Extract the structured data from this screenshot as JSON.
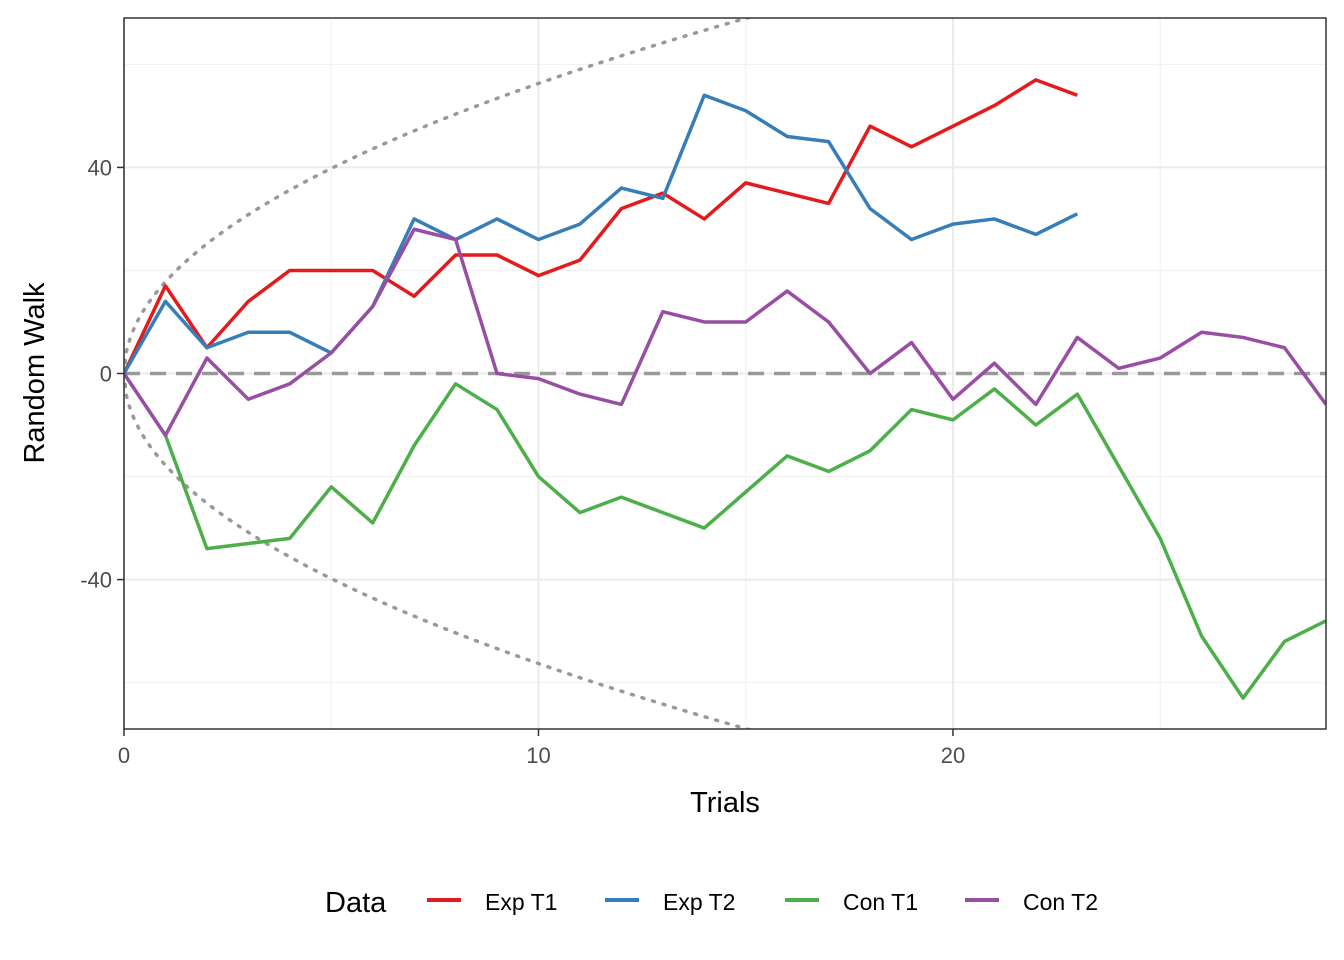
{
  "chart_data": {
    "type": "line",
    "xlabel": "Trials",
    "ylabel": "Random Walk",
    "xlim": [
      0,
      29
    ],
    "ylim": [
      -69,
      69
    ],
    "x_ticks": [
      0,
      10,
      20
    ],
    "x_tick_labels": [
      "0",
      "10",
      "20"
    ],
    "y_ticks": [
      -40,
      0,
      40
    ],
    "y_tick_labels": [
      "-40",
      "0",
      "40"
    ],
    "grid": true,
    "legend": {
      "title": "Data",
      "position": "bottom"
    },
    "series": [
      {
        "name": "Exp T1",
        "color": "#e41a1c",
        "x": [
          0,
          1,
          2,
          3,
          4,
          5,
          6,
          7,
          8,
          9,
          10,
          11,
          12,
          13,
          14,
          15,
          16,
          17,
          18,
          19,
          20,
          21,
          22,
          23
        ],
        "y": [
          0,
          17,
          5,
          14,
          20,
          20,
          20,
          15,
          23,
          23,
          19,
          22,
          32,
          35,
          30,
          37,
          35,
          33,
          48,
          44,
          48,
          52,
          57,
          54
        ]
      },
      {
        "name": "Exp T2",
        "color": "#377eb8",
        "x": [
          0,
          1,
          2,
          3,
          4,
          5,
          6,
          7,
          8,
          9,
          10,
          11,
          12,
          13,
          14,
          15,
          16,
          17,
          18,
          19,
          20,
          21,
          22,
          23
        ],
        "y": [
          0,
          14,
          5,
          8,
          8,
          4,
          13,
          30,
          26,
          30,
          26,
          29,
          36,
          34,
          54,
          51,
          46,
          45,
          32,
          26,
          29,
          30,
          27,
          31
        ]
      },
      {
        "name": "Con T1",
        "color": "#4daf4a",
        "x": [
          0,
          1,
          2,
          3,
          4,
          5,
          6,
          7,
          8,
          9,
          10,
          11,
          12,
          13,
          14,
          15,
          16,
          17,
          18,
          19,
          20,
          21,
          22,
          23,
          24,
          25,
          26,
          27,
          28,
          29
        ],
        "y": [
          0,
          -12,
          -34,
          -33,
          -32,
          -22,
          -29,
          -14,
          -2,
          -7,
          -20,
          -27,
          -24,
          -27,
          -30,
          -23,
          -16,
          -19,
          -15,
          -7,
          -9,
          -3,
          -10,
          -4,
          -18,
          -32,
          -51,
          -63,
          -52,
          -48
        ]
      },
      {
        "name": "Con T2",
        "color": "#984ea3",
        "x": [
          0,
          1,
          2,
          3,
          4,
          5,
          6,
          7,
          8,
          9,
          10,
          11,
          12,
          13,
          14,
          15,
          16,
          17,
          18,
          19,
          20,
          21,
          22,
          23,
          24,
          25,
          26,
          27,
          28,
          29
        ],
        "y": [
          0,
          -12,
          3,
          -5,
          -2,
          4,
          13,
          28,
          26,
          0,
          -1,
          -4,
          -6,
          12,
          10,
          10,
          16,
          10,
          0,
          6,
          -5,
          2,
          -6,
          7,
          1,
          3,
          8,
          7,
          5,
          -6
        ]
      }
    ],
    "reference_lines": [
      {
        "type": "horizontal",
        "y": 0,
        "style": "dashed",
        "color": "#999999"
      },
      {
        "type": "bound",
        "formula": "y = ±a·sqrt(x)",
        "a": 17.8,
        "style": "dotted",
        "color": "#999999"
      }
    ]
  }
}
